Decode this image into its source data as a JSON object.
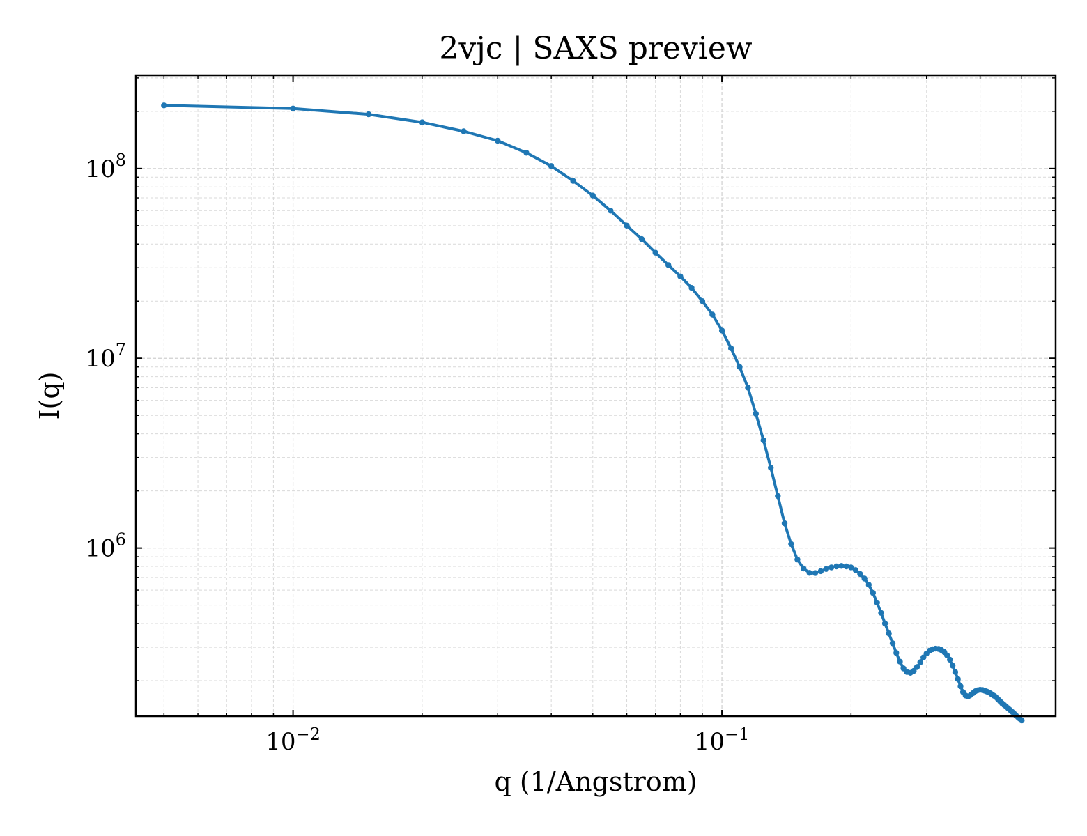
{
  "chart_data": {
    "type": "line",
    "title": "2vjc | SAXS preview",
    "xlabel": "q (1/Angstrom)",
    "ylabel": "I(q)",
    "xscale": "log",
    "yscale": "log",
    "xlim": [
      0.0043,
      0.6
    ],
    "ylim": [
      130000,
      310000000
    ],
    "grid": true,
    "legend": "none",
    "color": "#1f77b4",
    "x_ticks": [
      {
        "value": 0.01,
        "base": "10",
        "exp": "−2"
      },
      {
        "value": 0.1,
        "base": "10",
        "exp": "−1"
      }
    ],
    "y_ticks": [
      {
        "value": 1000000,
        "base": "10",
        "exp": "6"
      },
      {
        "value": 10000000,
        "base": "10",
        "exp": "7"
      },
      {
        "value": 100000000,
        "base": "10",
        "exp": "8"
      }
    ],
    "series": [
      {
        "x": [
          0.005,
          0.01,
          0.015,
          0.02,
          0.025,
          0.03,
          0.035,
          0.04,
          0.045,
          0.05,
          0.055,
          0.06,
          0.065,
          0.07,
          0.075,
          0.08,
          0.085,
          0.09,
          0.095,
          0.1,
          0.105,
          0.11,
          0.115,
          0.12,
          0.125,
          0.13,
          0.135,
          0.14,
          0.145,
          0.15,
          0.155,
          0.16,
          0.165,
          0.17,
          0.175,
          0.18,
          0.185,
          0.19,
          0.195,
          0.2,
          0.205,
          0.21,
          0.215,
          0.22,
          0.225,
          0.23,
          0.235,
          0.24,
          0.245,
          0.25,
          0.255,
          0.26,
          0.265,
          0.27,
          0.275,
          0.28,
          0.285,
          0.29,
          0.295,
          0.3,
          0.305,
          0.31,
          0.315,
          0.32,
          0.325,
          0.33,
          0.335,
          0.34,
          0.345,
          0.35,
          0.355,
          0.36,
          0.365,
          0.37,
          0.375,
          0.38,
          0.385,
          0.39,
          0.395,
          0.4,
          0.405,
          0.41,
          0.415,
          0.42,
          0.425,
          0.43,
          0.435,
          0.44,
          0.445,
          0.45,
          0.455,
          0.46,
          0.465,
          0.47,
          0.475,
          0.48,
          0.485,
          0.49,
          0.495,
          0.5
        ],
        "y": [
          215000000,
          207000000,
          193000000,
          175000000,
          157000000,
          140000000,
          121000000,
          103000000,
          86000000,
          72000000,
          60000000,
          50000000,
          42500000,
          36000000,
          31000000,
          27000000,
          23500000,
          20000000,
          17000000,
          14000000,
          11300000,
          9000000,
          7000000,
          5100000,
          3700000,
          2650000,
          1880000,
          1350000,
          1050000,
          870000,
          780000,
          740000,
          738000,
          755000,
          775000,
          790000,
          800000,
          805000,
          800000,
          790000,
          765000,
          730000,
          690000,
          640000,
          580000,
          515000,
          455000,
          400000,
          355000,
          315000,
          280000,
          252000,
          232000,
          222000,
          220000,
          225000,
          236000,
          250000,
          265000,
          278000,
          288000,
          293000,
          295000,
          294000,
          290000,
          283000,
          272000,
          258000,
          240000,
          222000,
          204000,
          187000,
          174000,
          167000,
          165000,
          168000,
          172000,
          176000,
          178000,
          179000,
          178500,
          177000,
          175000,
          173000,
          170000,
          167000,
          164000,
          160000,
          156000,
          152000,
          149000,
          146000,
          143000,
          140000,
          137000,
          134000,
          131000,
          128500,
          126000,
          123500
        ]
      }
    ]
  }
}
